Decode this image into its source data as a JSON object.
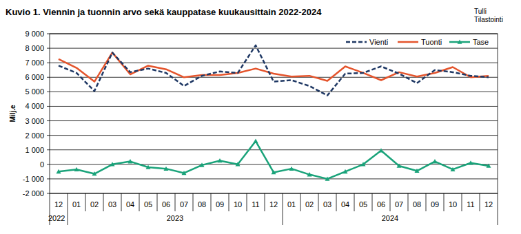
{
  "chart_data": {
    "type": "line",
    "title": "Kuvio 1. Viennin ja tuonnin arvo sekä kauppatase kuukausittain 2022-2024",
    "source_lines": [
      "Tulli",
      "Tilastointi"
    ],
    "y_label": "Milj.e",
    "categories": [
      "12",
      "01",
      "02",
      "03",
      "04",
      "05",
      "06",
      "07",
      "08",
      "09",
      "10",
      "11",
      "12",
      "01",
      "02",
      "03",
      "04",
      "05",
      "06",
      "07",
      "08",
      "09",
      "10",
      "11",
      "12"
    ],
    "x_groups": [
      {
        "label": "2022",
        "start": 0,
        "end": 0
      },
      {
        "label": "2023",
        "start": 1,
        "end": 12
      },
      {
        "label": "2024",
        "start": 13,
        "end": 24
      }
    ],
    "series": [
      {
        "name": "Vienti",
        "color": "#1f3864",
        "line_style": "dashed",
        "values": [
          6800,
          6300,
          5050,
          7700,
          6350,
          6600,
          6300,
          5400,
          6100,
          6400,
          6300,
          8200,
          5700,
          5800,
          5400,
          4750,
          6250,
          6300,
          6750,
          6250,
          5600,
          6500,
          6350,
          6100,
          6000
        ]
      },
      {
        "name": "Tuonti",
        "color": "#e4542c",
        "line_style": "solid",
        "values": [
          7250,
          6650,
          5700,
          7700,
          6200,
          6800,
          6550,
          6000,
          6150,
          6150,
          6300,
          6600,
          6250,
          6050,
          6100,
          5750,
          6750,
          6300,
          5800,
          6350,
          6050,
          6300,
          6700,
          6000,
          6100
        ]
      },
      {
        "name": "Tase",
        "color": "#1aa37a",
        "line_style": "solid",
        "marker": "triangle",
        "values": [
          -500,
          -350,
          -650,
          0,
          200,
          -200,
          -300,
          -600,
          -50,
          250,
          0,
          1600,
          -550,
          -300,
          -700,
          -1000,
          -500,
          0,
          950,
          -100,
          -450,
          200,
          -350,
          100,
          -100
        ]
      }
    ],
    "ylim": [
      -2000,
      9000
    ],
    "yticks": [
      {
        "value": -2000,
        "label": "-2 000"
      },
      {
        "value": -1000,
        "label": "-1 000"
      },
      0,
      {
        "value": 1000,
        "label": "1 000"
      },
      {
        "value": 2000,
        "label": "2 000"
      },
      {
        "value": 3000,
        "label": "3 000"
      },
      {
        "value": 4000,
        "label": "4 000"
      },
      {
        "value": 5000,
        "label": "5 000"
      },
      {
        "value": 6000,
        "label": "6 000"
      },
      {
        "value": 7000,
        "label": "7 000"
      },
      {
        "value": 8000,
        "label": "8 000"
      },
      {
        "value": 9000,
        "label": "9 000"
      }
    ],
    "grid": true,
    "legend": "top-right"
  }
}
